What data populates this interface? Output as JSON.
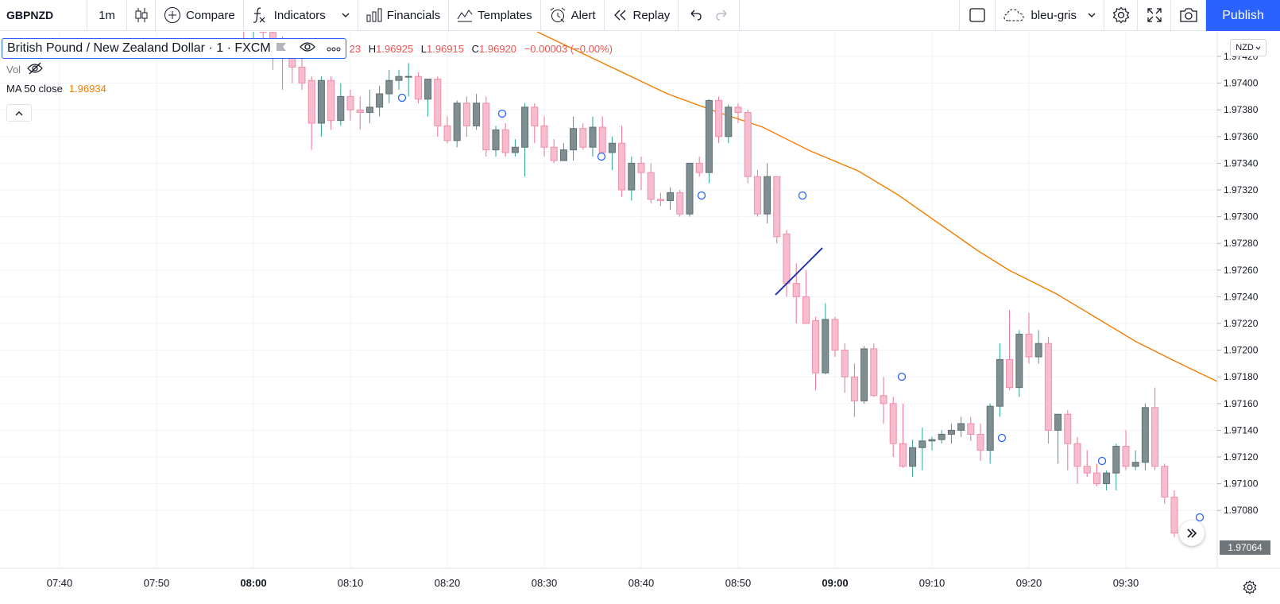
{
  "toolbar": {
    "symbol": "GBPNZD",
    "interval": "1m",
    "compare_label": "Compare",
    "indicators_label": "Indicators",
    "financials_label": "Financials",
    "templates_label": "Templates",
    "alert_label": "Alert",
    "replay_label": "Replay",
    "layout_name": "bleu-gris",
    "publish_label": "Publish"
  },
  "legend": {
    "symbol_title": "British Pound / New Zealand Dollar · 1 · FXCM",
    "open_partial": "23",
    "h_label": "H",
    "h_value": "1.96925",
    "l_label": "L",
    "l_value": "1.96915",
    "c_label": "C",
    "c_value": "1.96920",
    "change": "−0.00003 (−0.00%)",
    "vol_label": "Vol",
    "ma_label": "MA 50 close",
    "ma_value": "1.96934"
  },
  "price_axis": {
    "currency": "NZD",
    "current_price": "1.97064",
    "labels": [
      "1.97420",
      "1.97400",
      "1.97380",
      "1.97360",
      "1.97340",
      "1.97320",
      "1.97300",
      "1.97280",
      "1.97260",
      "1.97240",
      "1.97220",
      "1.97200",
      "1.97180",
      "1.97160",
      "1.97140",
      "1.97120",
      "1.97100",
      "1.97080"
    ]
  },
  "time_axis": {
    "labels": [
      "07:40",
      "07:50",
      "08:00",
      "08:10",
      "08:20",
      "08:30",
      "08:40",
      "08:50",
      "09:00",
      "09:10",
      "09:20",
      "09:30"
    ],
    "bold": [
      "08:00",
      "09:00"
    ]
  },
  "colors": {
    "up_fill": "#7f8e92",
    "up_border": "#5f6e72",
    "up_wick": "#26a69a",
    "down_fill": "#f7bccd",
    "down_border": "#ef8fa8",
    "down_wick": "#ef6f8f",
    "ma_line": "#f57c00",
    "drawing": "#2436b5",
    "accent": "#2962ff"
  },
  "icons": {
    "chart_type": "candlestick-icon",
    "compare": "plus-circle-icon",
    "indicators": "fx-icon",
    "financials": "bar-chart-icon",
    "templates": "templates-icon",
    "alert": "alarm-clock-icon",
    "replay": "rewind-icon",
    "undo": "undo-icon",
    "redo": "redo-icon"
  }
}
